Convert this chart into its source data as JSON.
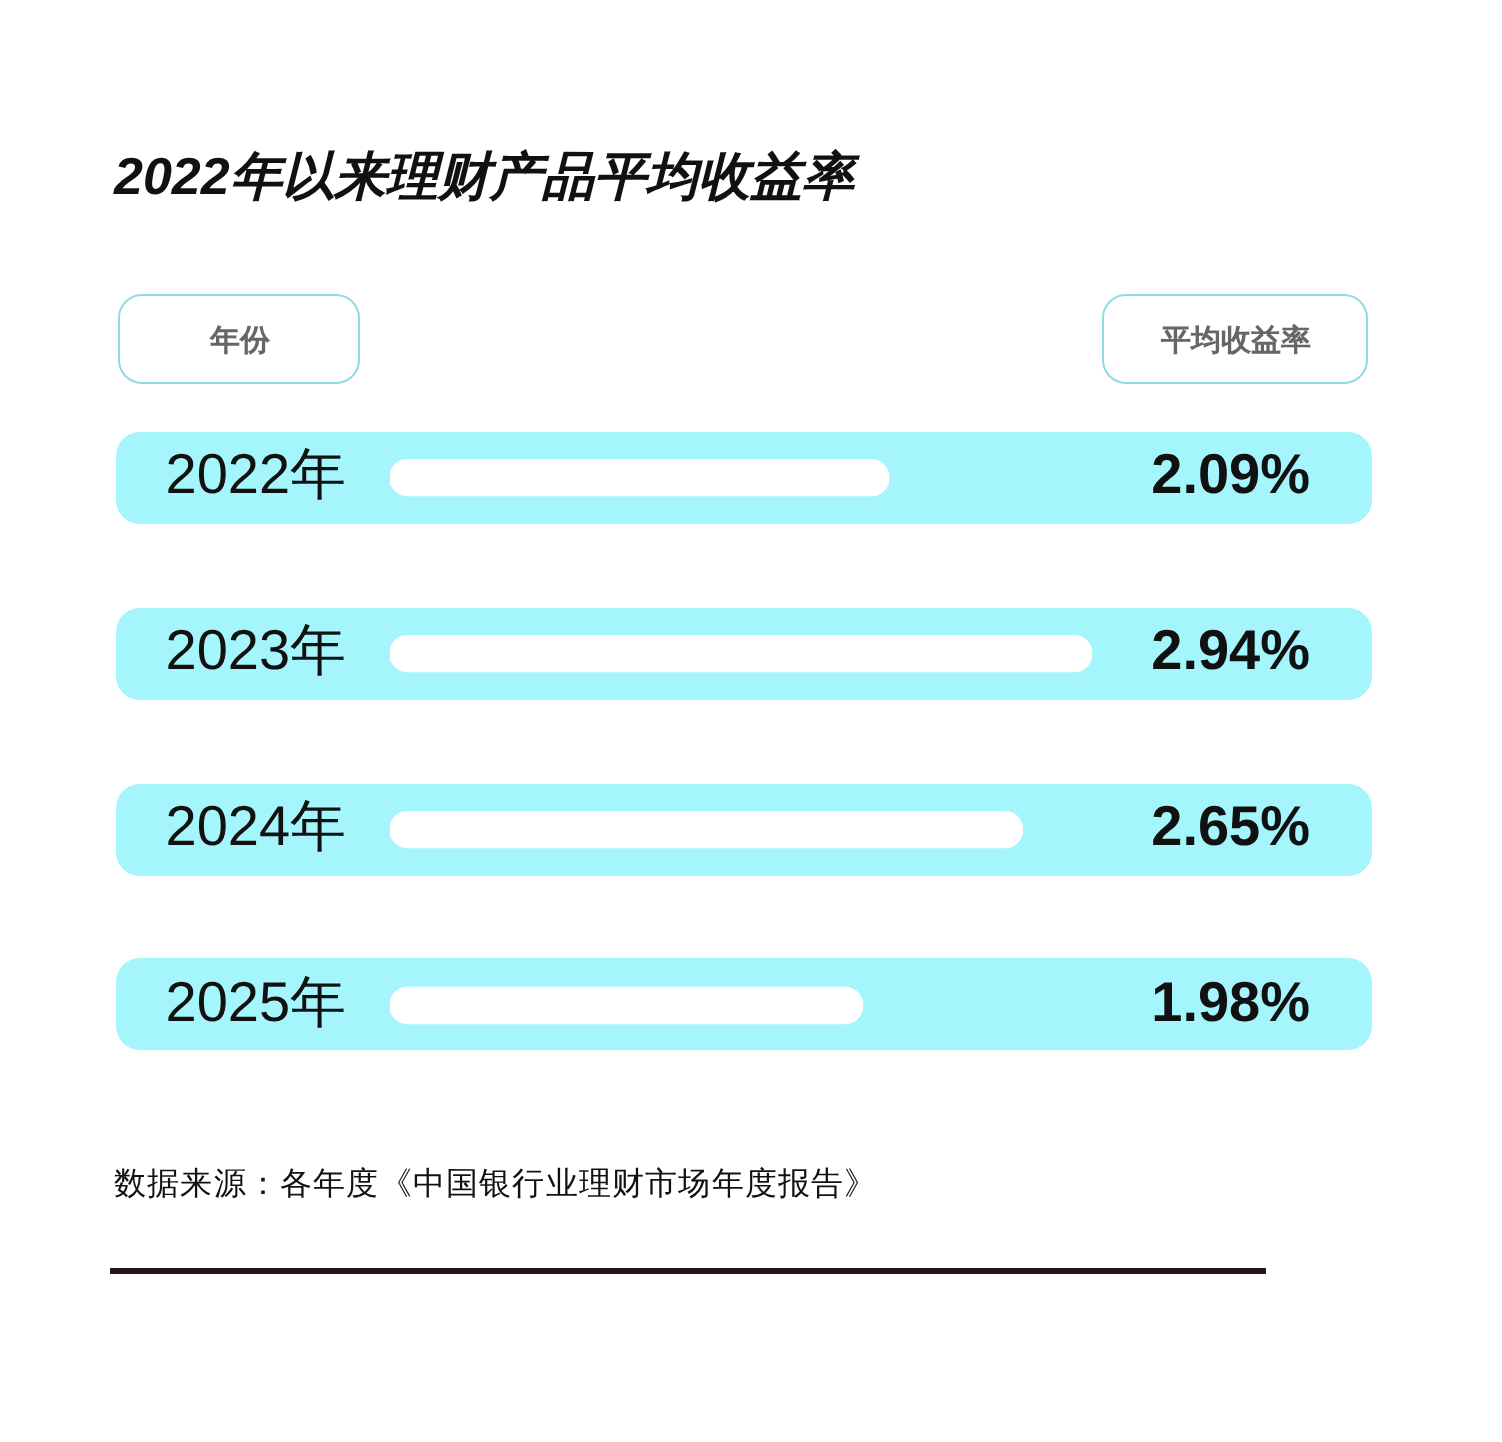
{
  "chart_data": {
    "type": "bar",
    "orientation": "horizontal",
    "title": "2022年以来理财产品平均收益率",
    "ylabel": "年份",
    "xlabel": "平均收益率",
    "categories": [
      "2022年",
      "2023年",
      "2024年",
      "2025年"
    ],
    "values": [
      2.09,
      2.94,
      2.65,
      1.98
    ],
    "value_labels": [
      "2.09%",
      "2.94%",
      "2.65%",
      "1.98%"
    ],
    "color": "#ffffff",
    "tick_labels": "y",
    "annotations": [
      "数据来源：各年度《中国银行业理财市场年度报告》"
    ]
  }
}
